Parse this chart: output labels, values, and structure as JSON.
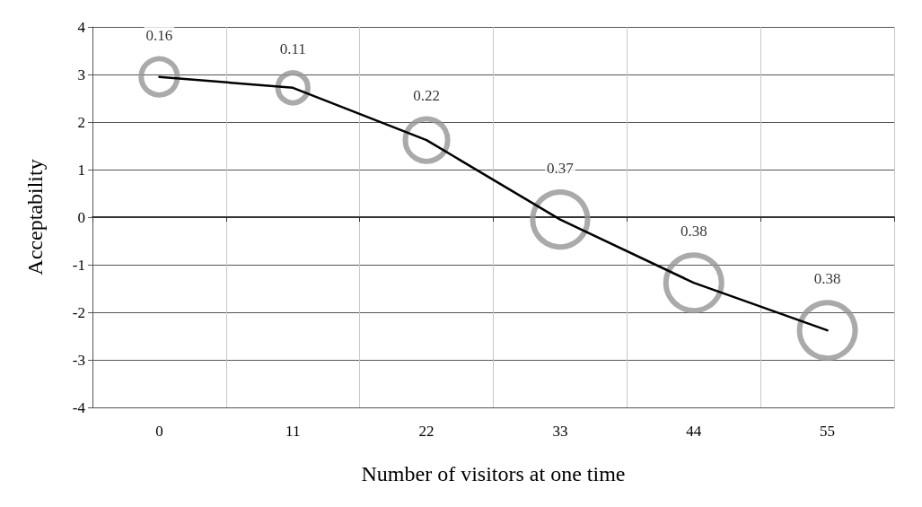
{
  "chart_data": {
    "type": "bubble",
    "xlabel": "Number of visitors at one time",
    "ylabel": "Acceptability",
    "categories": [
      "0",
      "11",
      "22",
      "33",
      "44",
      "55"
    ],
    "series": [
      {
        "color": "#959595",
        "values": [
          2.95,
          2.72,
          1.62,
          -0.05,
          -1.38,
          -2.38
        ],
        "sizes": [
          0.16,
          0.11,
          0.22,
          0.37,
          0.38,
          0.38
        ],
        "value_labels": [
          "0.16",
          "0.11",
          "0.22",
          "0.37",
          "0.38",
          "0.38"
        ]
      },
      {
        "type": "line",
        "color": "#000000",
        "values": [
          2.95,
          2.72,
          1.62,
          -0.05,
          -1.38,
          -2.38
        ]
      }
    ],
    "ylim": [
      -4,
      4
    ],
    "yticks": [
      -4,
      -3,
      -2,
      -1,
      0,
      1,
      2,
      3,
      4
    ],
    "grid": true,
    "line_style": "solid"
  }
}
